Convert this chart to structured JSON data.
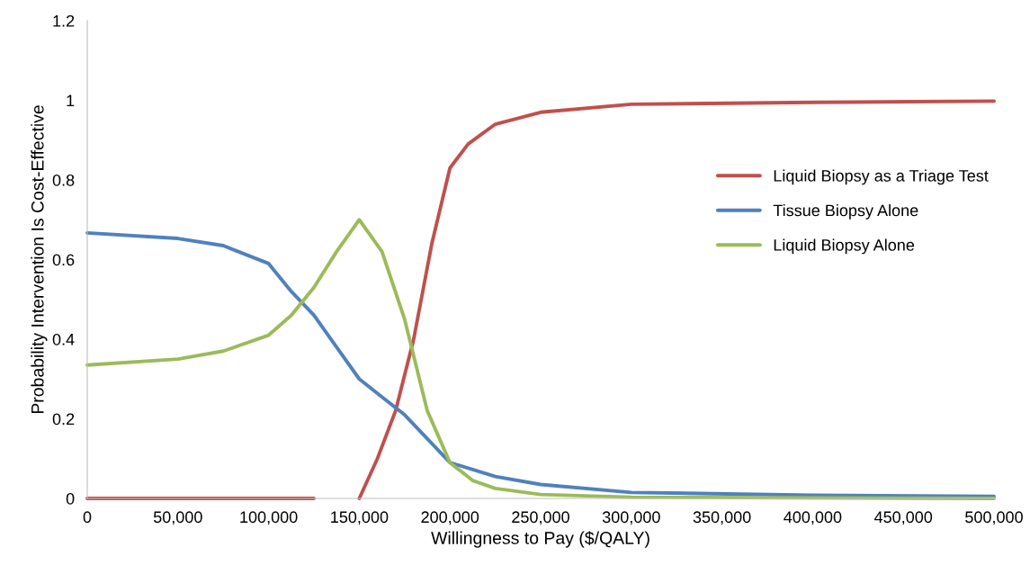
{
  "chart_data": {
    "type": "line",
    "xlabel": "Willingness to Pay ($/QALY)",
    "ylabel": "Probability Intervention Is Cost-Effective",
    "xlim": [
      0,
      500000
    ],
    "ylim": [
      0,
      1.2
    ],
    "xticks": [
      0,
      {
        "value": 50000,
        "label": "50,000"
      },
      {
        "value": 100000,
        "label": "100,000"
      },
      {
        "value": 150000,
        "label": "150,000"
      },
      {
        "value": 200000,
        "label": "200,000"
      },
      {
        "value": 250000,
        "label": "250,000"
      },
      {
        "value": 300000,
        "label": "300,000"
      },
      {
        "value": 350000,
        "label": "350,000"
      },
      {
        "value": 400000,
        "label": "400,000"
      },
      {
        "value": 450000,
        "label": "450,000"
      },
      {
        "value": 500000,
        "label": "500,000"
      }
    ],
    "yticks": [
      0,
      0.2,
      0.4,
      0.6,
      0.8,
      1,
      1.2
    ],
    "grid": false,
    "legend": "right",
    "marker": "none",
    "line_style": "solid",
    "series": [
      {
        "name": "Liquid Biopsy as a Triage Test",
        "color": "#c0504d",
        "x": [
          0,
          50000,
          100000,
          125000,
          137500,
          150000,
          160000,
          170000,
          180000,
          190000,
          200000,
          210000,
          225000,
          250000,
          300000,
          400000,
          500000
        ],
        "values": [
          0,
          0,
          0,
          0,
          null,
          0,
          0.1,
          0.22,
          0.4,
          0.64,
          0.83,
          0.89,
          0.94,
          0.97,
          0.99,
          0.995,
          0.998
        ]
      },
      {
        "name": "Tissue Biopsy Alone",
        "color": "#4f81bd",
        "x": [
          0,
          50000,
          75000,
          100000,
          112500,
          125000,
          137500,
          150000,
          162500,
          175000,
          187500,
          200000,
          225000,
          250000,
          300000,
          400000,
          500000
        ],
        "values": [
          0.667,
          0.653,
          0.635,
          0.59,
          0.52,
          0.46,
          0.38,
          0.3,
          0.255,
          0.21,
          0.15,
          0.09,
          0.055,
          0.035,
          0.015,
          0.008,
          0.005
        ]
      },
      {
        "name": "Liquid Biopsy Alone",
        "color": "#9bbb59",
        "x": [
          0,
          50000,
          75000,
          100000,
          112500,
          125000,
          137500,
          150000,
          162500,
          175000,
          187500,
          200000,
          212500,
          225000,
          250000,
          300000,
          500000
        ],
        "values": [
          0.335,
          0.35,
          0.37,
          0.41,
          0.46,
          0.53,
          0.62,
          0.7,
          0.62,
          0.45,
          0.22,
          0.09,
          0.045,
          0.025,
          0.01,
          0.003,
          0
        ]
      }
    ]
  }
}
